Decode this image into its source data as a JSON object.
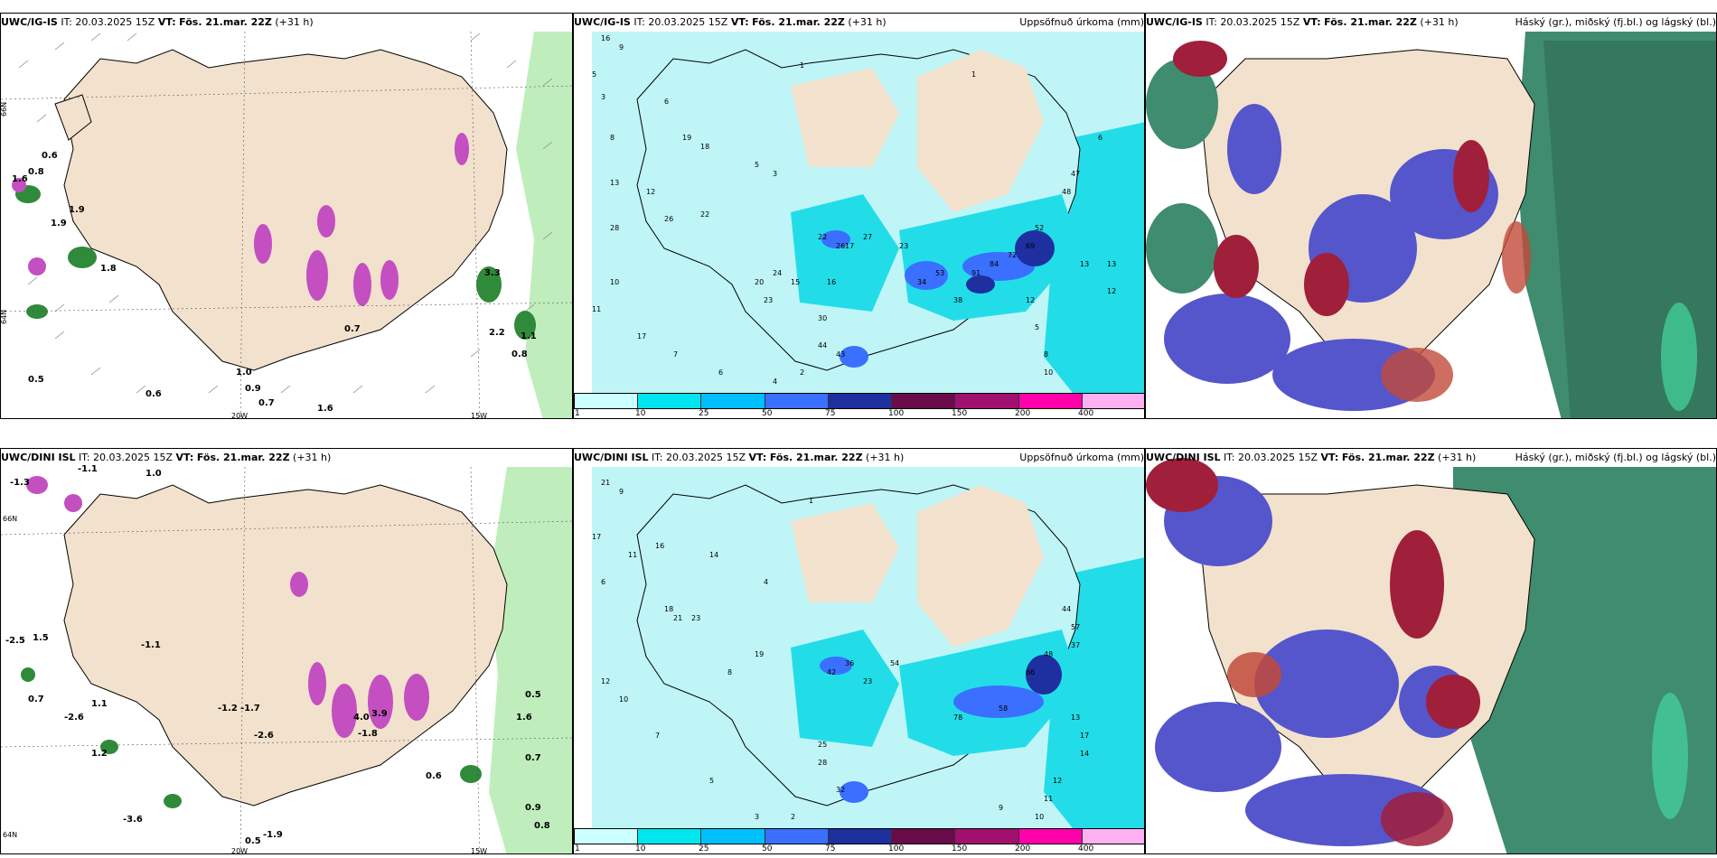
{
  "rows": [
    {
      "panels": [
        {
          "model": "UWC/IG-IS",
          "it": "IT: 20.03.2025 15Z",
          "vt_label": "VT:",
          "vt": "Fös. 21.mar. 22Z",
          "lead": "(+31 h)",
          "right": ""
        },
        {
          "model": "UWC/IG-IS",
          "it": "IT: 20.03.2025 15Z",
          "vt_label": "VT:",
          "vt": "Fös. 21.mar. 22Z",
          "lead": "(+31 h)",
          "right": "Uppsöfnuð úrkoma (mm)"
        },
        {
          "model": "UWC/IG-IS",
          "it": "IT: 20.03.2025 15Z",
          "vt_label": "VT:",
          "vt": "Fös. 21.mar. 22Z",
          "lead": "(+31 h)",
          "right": "Háský (gr.), miðský (fj.bl.) og lágský (bl.)"
        }
      ]
    },
    {
      "panels": [
        {
          "model": "UWC/DINI ISL",
          "it": "IT: 20.03.2025 15Z",
          "vt_label": "VT:",
          "vt": "Fös. 21.mar. 22Z",
          "lead": "(+31 h)",
          "right": ""
        },
        {
          "model": "UWC/DINI ISL",
          "it": "IT: 20.03.2025 15Z",
          "vt_label": "VT:",
          "vt": "Fös. 21.mar. 22Z",
          "lead": "(+31 h)",
          "right": "Uppsöfnuð úrkoma (mm)"
        },
        {
          "model": "UWC/DINI ISL",
          "it": "IT: 20.03.2025 15Z",
          "vt_label": "VT:",
          "vt": "Fös. 21.mar. 22Z",
          "lead": "(+31 h)",
          "right": "Háský (gr.), miðský (fj.bl.) og lágský (bl.)"
        }
      ]
    }
  ],
  "axis_labels": {
    "lat66": "66N",
    "lat64": "64N",
    "lon20": "20W",
    "lon15": "15W"
  },
  "colorbar": {
    "colors": [
      "#ccffff",
      "#00e5ee",
      "#00bfff",
      "#3a6fff",
      "#1e2fa0",
      "#6a0b4a",
      "#a0106e",
      "#ff00aa",
      "#ffb0f0"
    ],
    "labels": [
      "1",
      "10",
      "25",
      "50",
      "75",
      "100",
      "150",
      "200",
      "400"
    ]
  },
  "colors": {
    "land": "#f2e1cc",
    "sea_precip": "#bff5f7",
    "precip_mid": "#22dde8",
    "low_cloud": "#5555cc",
    "mid_cloud": "#a01f3a",
    "high_cloud": "#3f8c6e",
    "wind_green": "#bfeebc"
  },
  "precip_values_top": [
    "16",
    "9",
    "5",
    "3",
    "8",
    "6",
    "19",
    "18",
    "28",
    "26",
    "22",
    "13",
    "12",
    "10",
    "11",
    "17",
    "7",
    "6",
    "4",
    "2",
    "1",
    "5",
    "3",
    "20",
    "23",
    "24",
    "15",
    "16",
    "17",
    "27",
    "26",
    "22",
    "23",
    "30",
    "38",
    "44",
    "43",
    "12",
    "13",
    "47",
    "48",
    "52",
    "69",
    "72",
    "84",
    "91",
    "53",
    "34",
    "5",
    "8",
    "10",
    "12",
    "13",
    "1",
    "6"
  ],
  "precip_values_bottom": [
    "21",
    "9",
    "17",
    "6",
    "11",
    "16",
    "18",
    "21",
    "23",
    "14",
    "12",
    "10",
    "7",
    "5",
    "3",
    "2",
    "1",
    "4",
    "8",
    "19",
    "25",
    "28",
    "32",
    "42",
    "36",
    "23",
    "54",
    "78",
    "58",
    "44",
    "57",
    "37",
    "48",
    "66",
    "13",
    "17",
    "14",
    "12",
    "11",
    "10",
    "9"
  ],
  "wind_values_top": [
    "0.6",
    "0.8",
    "1.6",
    "1.9",
    "1.8",
    "0.9",
    "1.0",
    "0.5",
    "0.6",
    "0.7",
    "1.6",
    "2.2",
    "0.8",
    "1.9",
    "0.7",
    "3.3",
    "1.1"
  ],
  "wind_values_bottom": [
    "-2.5",
    "-1.1",
    "-1.3",
    "1.5",
    "0.7",
    "-2.6",
    "1.2",
    "-1.1",
    "-1.7",
    "-2.6",
    "1.1",
    "0.5",
    "1.6",
    "0.7",
    "0.6",
    "0.8",
    "0.9",
    "-1.9",
    "0.5",
    "-3.6",
    "1.0",
    "4.0",
    "-1.8",
    "3.9",
    "-1.2"
  ]
}
